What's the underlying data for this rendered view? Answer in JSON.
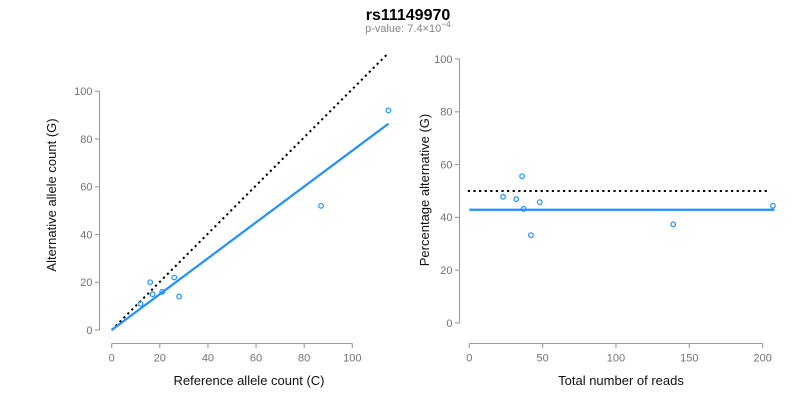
{
  "header": {
    "title": "rs11149970",
    "subtitle_prefix": "p-value: 7.4×10",
    "subtitle_exponent": "−4"
  },
  "colors": {
    "accent_blue": "#1E90FF",
    "line_black": "#000000",
    "axis_gray": "#9b9b9b",
    "tick_label_gray": "#737373",
    "subtitle_gray": "#858585"
  },
  "chart_data": [
    {
      "type": "scatter",
      "name": "allele-counts-plot",
      "xlabel": "Reference allele count (C)",
      "ylabel": "Alternative allele count (G)",
      "xlim": [
        0,
        117
      ],
      "ylim": [
        0,
        115
      ],
      "xticks": [
        0,
        20,
        40,
        60,
        80,
        100
      ],
      "yticks": [
        0,
        20,
        40,
        60,
        80,
        100
      ],
      "grid": false,
      "points": [
        [
          12,
          11
        ],
        [
          16,
          20
        ],
        [
          17,
          15
        ],
        [
          21,
          16
        ],
        [
          26,
          22
        ],
        [
          28,
          14
        ],
        [
          87,
          52
        ],
        [
          115,
          92
        ]
      ],
      "lines": [
        {
          "name": "identity-line",
          "style": "dotted",
          "color": "#000000",
          "x": [
            0,
            114.5
          ],
          "y": [
            0,
            115.5
          ]
        },
        {
          "name": "fit-line",
          "style": "solid",
          "color": "#1E90FF",
          "x": [
            0,
            115
          ],
          "y": [
            0,
            86.4
          ]
        }
      ]
    },
    {
      "type": "scatter",
      "name": "percentage-alternative-plot",
      "xlabel": "Total number of reads",
      "ylabel": "Percentage alternative (G)",
      "xlim": [
        0,
        210
      ],
      "ylim": [
        0,
        100
      ],
      "xticks": [
        0,
        50,
        100,
        150,
        200
      ],
      "yticks": [
        0,
        20,
        40,
        60,
        80,
        100
      ],
      "grid": false,
      "points": [
        [
          23,
          47.8
        ],
        [
          32,
          46.9
        ],
        [
          36,
          55.6
        ],
        [
          37,
          43.2
        ],
        [
          42,
          33.3
        ],
        [
          48,
          45.8
        ],
        [
          139,
          37.4
        ],
        [
          207,
          44.4
        ]
      ],
      "lines": [
        {
          "name": "expected-50pct-line",
          "style": "dotted",
          "color": "#000000",
          "x": [
            -1,
            204
          ],
          "y": [
            50,
            50
          ]
        },
        {
          "name": "observed-mean-line",
          "style": "solid",
          "color": "#1E90FF",
          "x": [
            0,
            208
          ],
          "y": [
            42.9,
            42.9
          ]
        }
      ]
    }
  ]
}
